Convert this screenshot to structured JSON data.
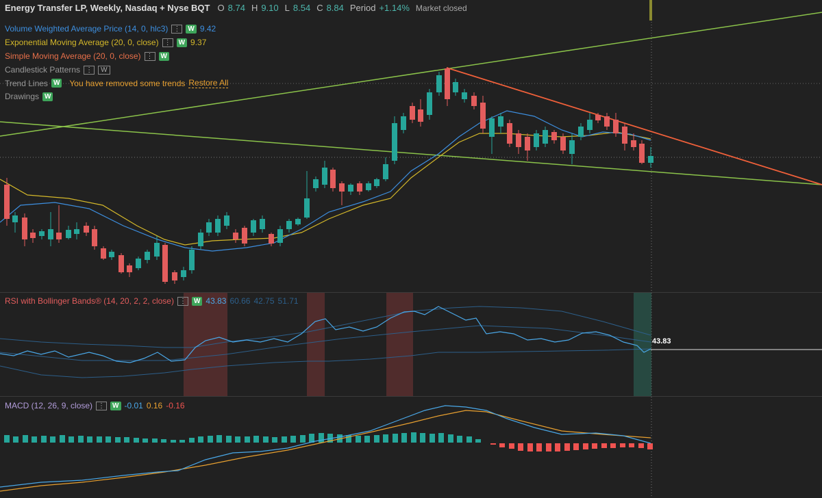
{
  "header": {
    "title": "Energy Transfer LP, Weekly, Nasdaq + Nyse BQT",
    "ohlc": [
      {
        "key": "O",
        "value": "8.74"
      },
      {
        "key": "H",
        "value": "9.10"
      },
      {
        "key": "L",
        "value": "8.54"
      },
      {
        "key": "C",
        "value": "8.84"
      }
    ],
    "period_label": "Period",
    "period_value": "+1.14%",
    "status": "Market closed"
  },
  "badge": "W",
  "indicators": [
    {
      "name": "Volume Weighted Average Price (14, 0, hlc3)",
      "value": "9.42"
    },
    {
      "name": "Exponential Moving Average (20, 0, close)",
      "value": "9.37"
    },
    {
      "name": "Simple Moving Average (20, 0, close)"
    },
    {
      "name": "Candlestick Patterns"
    },
    {
      "name": "Trend Lines",
      "note": "You have removed some trends",
      "action": "Restore All"
    },
    {
      "name": "Drawings"
    }
  ],
  "rsi": {
    "name": "RSI with Bollinger Bands® (14, 20, 2, 2, close)",
    "values": [
      "43.83",
      "60.66",
      "42.75",
      "51.71"
    ],
    "last": "43.83"
  },
  "macd": {
    "name": "MACD (12, 26, 9, close)",
    "values": [
      "-0.01",
      "0.16",
      "-0.16"
    ]
  }
}
